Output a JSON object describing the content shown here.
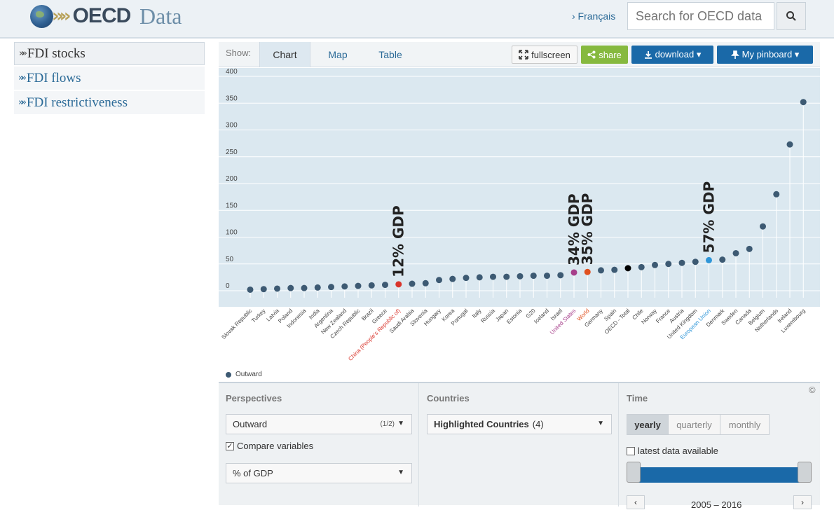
{
  "header": {
    "brand": "OECD",
    "section": "Data",
    "language_link": "› Français",
    "search_placeholder": "Search for OECD data"
  },
  "nav": {
    "items": [
      {
        "label": "FDI stocks",
        "active": true
      },
      {
        "label": "FDI flows",
        "active": false
      },
      {
        "label": "FDI restrictiveness",
        "active": false
      }
    ]
  },
  "toolbar": {
    "show_label": "Show:",
    "tabs": [
      "Chart",
      "Map",
      "Table"
    ],
    "active_tab": "Chart",
    "fullscreen": "fullscreen",
    "share": "share",
    "download": "download ▾",
    "pinboard": "My pinboard ▾"
  },
  "chart_data": {
    "type": "scatter",
    "ylim": [
      0,
      400
    ],
    "yticks": [
      0,
      50,
      100,
      150,
      200,
      250,
      300,
      350,
      400
    ],
    "grid": true,
    "series_name": "Outward",
    "categories": [
      "Slovak Republic",
      "Turkey",
      "Latvia",
      "Poland",
      "Indonesia",
      "India",
      "Argentina",
      "New Zealand",
      "Czech Republic",
      "Brazil",
      "Greece",
      "China (People's Republic of)",
      "Saudi Arabia",
      "Slovenia",
      "Hungary",
      "Korea",
      "Portugal",
      "Italy",
      "Russia",
      "Japan",
      "Estonia",
      "G20",
      "Iceland",
      "Israel",
      "United States",
      "World",
      "Germany",
      "Spain",
      "OECD - Total",
      "Chile",
      "Norway",
      "France",
      "Austria",
      "United Kingdom",
      "European Union",
      "Denmark",
      "Sweden",
      "Canada",
      "Belgium",
      "Netherlands",
      "Ireland",
      "Luxembourg"
    ],
    "values": [
      2,
      3,
      4,
      5,
      5,
      6,
      7,
      8,
      9,
      10,
      11,
      12,
      13,
      14,
      20,
      22,
      24,
      25,
      26,
      26,
      27,
      28,
      28,
      29,
      34,
      35,
      38,
      39,
      42,
      44,
      48,
      50,
      52,
      54,
      57,
      58,
      70,
      78,
      120,
      180,
      273,
      352
    ],
    "highlighted": {
      "China (People's Republic of)": {
        "color": "#d9342b",
        "annotation": "12% GDP"
      },
      "United States": {
        "color": "#a63e8a",
        "annotation": "34% GDP"
      },
      "World": {
        "color": "#e0501f",
        "annotation": "35% GDP"
      },
      "OECD - Total": {
        "color": "#000000",
        "annotation": ""
      },
      "European Union": {
        "color": "#2f96d8",
        "annotation": "57% GDP"
      }
    },
    "default_color": "#3d5a73",
    "legend": "Outward"
  },
  "controls": {
    "perspectives_title": "Perspectives",
    "perspective_value": "Outward",
    "perspective_count": "(1/2)",
    "compare_label": "Compare variables",
    "measure_value": "% of GDP",
    "countries_title": "Countries",
    "countries_value": "Highlighted Countries",
    "countries_count": "(4)",
    "time_title": "Time",
    "time_options": [
      "yearly",
      "quarterly",
      "monthly"
    ],
    "time_active": "yearly",
    "latest_label": "latest data available",
    "range_label": "2005 – 2016",
    "copyright": "©"
  }
}
